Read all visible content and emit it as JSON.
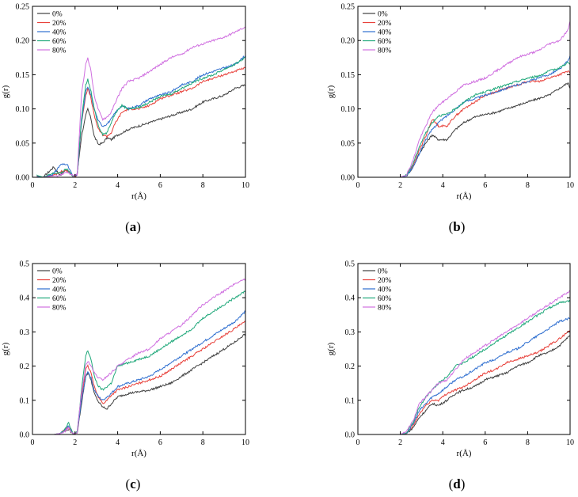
{
  "colors": {
    "0%": "#404040",
    "20%": "#e8403a",
    "40%": "#2f6fd0",
    "60%": "#1fa87a",
    "80%": "#d070e0"
  },
  "chart_data": [
    {
      "type": "line",
      "panel": "(a)",
      "label_letter": "a",
      "xlabel": "r(Å)",
      "ylabel": "g(r)",
      "xlim": [
        0,
        10
      ],
      "ylim": [
        0,
        0.25
      ],
      "xticks": [
        "0",
        "2",
        "4",
        "6",
        "8",
        "10"
      ],
      "yticks": [
        "0.00",
        "0.05",
        "0.10",
        "0.15",
        "0.20",
        "0.25"
      ],
      "legend": [
        "0%",
        "20%",
        "40%",
        "60%",
        "80%"
      ],
      "x": [
        0.2,
        0.5,
        1.0,
        1.3,
        1.6,
        1.9,
        2.1,
        2.3,
        2.5,
        2.6,
        2.75,
        2.9,
        3.1,
        3.3,
        3.5,
        3.7,
        3.9,
        4.2,
        4.5,
        5,
        5.5,
        6,
        6.5,
        7,
        7.5,
        8,
        8.5,
        9,
        9.5,
        10
      ],
      "series": [
        {
          "name": "0%",
          "values": [
            0,
            0,
            0.015,
            0.003,
            0.012,
            0.001,
            0.005,
            0.06,
            0.09,
            0.1,
            0.085,
            0.06,
            0.048,
            0.05,
            0.058,
            0.055,
            0.06,
            0.065,
            0.07,
            0.075,
            0.08,
            0.085,
            0.09,
            0.095,
            0.1,
            0.11,
            0.115,
            0.12,
            0.13,
            0.135
          ]
        },
        {
          "name": "20%",
          "values": [
            0.002,
            0,
            0.003,
            0.008,
            0.01,
            0.002,
            0.003,
            0.08,
            0.12,
            0.13,
            0.115,
            0.09,
            0.07,
            0.062,
            0.06,
            0.065,
            0.08,
            0.095,
            0.1,
            0.1,
            0.105,
            0.115,
            0.12,
            0.125,
            0.13,
            0.14,
            0.145,
            0.15,
            0.155,
            0.16
          ]
        },
        {
          "name": "40%",
          "values": [
            0.001,
            0,
            0.005,
            0.018,
            0.02,
            0.002,
            0.003,
            0.08,
            0.125,
            0.132,
            0.12,
            0.1,
            0.082,
            0.075,
            0.078,
            0.085,
            0.095,
            0.105,
            0.1,
            0.105,
            0.115,
            0.12,
            0.125,
            0.135,
            0.14,
            0.15,
            0.155,
            0.16,
            0.165,
            0.178
          ]
        },
        {
          "name": "60%",
          "values": [
            0.003,
            0,
            0.006,
            0.006,
            0.012,
            0.002,
            0.004,
            0.085,
            0.135,
            0.143,
            0.125,
            0.1,
            0.075,
            0.063,
            0.065,
            0.08,
            0.095,
            0.105,
            0.1,
            0.102,
            0.11,
            0.118,
            0.122,
            0.13,
            0.138,
            0.145,
            0.15,
            0.158,
            0.165,
            0.175
          ]
        },
        {
          "name": "80%",
          "values": [
            0,
            0,
            0.002,
            0.003,
            0.008,
            0.002,
            0.004,
            0.12,
            0.165,
            0.175,
            0.155,
            0.12,
            0.098,
            0.085,
            0.088,
            0.095,
            0.11,
            0.13,
            0.14,
            0.145,
            0.155,
            0.165,
            0.175,
            0.18,
            0.19,
            0.195,
            0.2,
            0.205,
            0.212,
            0.22
          ]
        }
      ]
    },
    {
      "type": "line",
      "panel": "(b)",
      "label_letter": "b",
      "xlabel": "r(Å)",
      "ylabel": "g(r)",
      "xlim": [
        0,
        10
      ],
      "ylim": [
        0,
        0.25
      ],
      "xticks": [
        "0",
        "2",
        "4",
        "6",
        "8",
        "10"
      ],
      "yticks": [
        "0.00",
        "0.05",
        "0.10",
        "0.15",
        "0.20",
        "0.25"
      ],
      "legend": [
        "0%",
        "20%",
        "40%",
        "60%",
        "80%"
      ],
      "x": [
        0,
        1,
        2,
        2.3,
        2.6,
        2.9,
        3.2,
        3.5,
        3.8,
        4.2,
        4.6,
        5,
        5.5,
        6,
        6.5,
        7,
        7.5,
        8,
        8.5,
        9,
        9.5,
        9.9,
        10
      ],
      "series": [
        {
          "name": "0%",
          "values": [
            0,
            0,
            0,
            0.002,
            0.015,
            0.035,
            0.05,
            0.062,
            0.055,
            0.055,
            0.07,
            0.08,
            0.088,
            0.092,
            0.095,
            0.1,
            0.105,
            0.11,
            0.115,
            0.12,
            0.13,
            0.138,
            0.13
          ]
        },
        {
          "name": "20%",
          "values": [
            0,
            0,
            0,
            0.003,
            0.018,
            0.04,
            0.06,
            0.085,
            0.075,
            0.075,
            0.09,
            0.1,
            0.11,
            0.12,
            0.125,
            0.13,
            0.135,
            0.14,
            0.14,
            0.145,
            0.15,
            0.155,
            0.152
          ]
        },
        {
          "name": "40%",
          "values": [
            0,
            0,
            0,
            0.002,
            0.015,
            0.035,
            0.055,
            0.07,
            0.08,
            0.09,
            0.1,
            0.11,
            0.115,
            0.12,
            0.125,
            0.13,
            0.135,
            0.14,
            0.145,
            0.15,
            0.158,
            0.17,
            0.178
          ]
        },
        {
          "name": "60%",
          "values": [
            0,
            0,
            0,
            0.003,
            0.02,
            0.045,
            0.065,
            0.08,
            0.09,
            0.092,
            0.1,
            0.11,
            0.12,
            0.125,
            0.13,
            0.135,
            0.14,
            0.145,
            0.148,
            0.155,
            0.16,
            0.168,
            0.165
          ]
        },
        {
          "name": "80%",
          "values": [
            0,
            0,
            0,
            0.004,
            0.025,
            0.055,
            0.075,
            0.095,
            0.105,
            0.115,
            0.125,
            0.135,
            0.14,
            0.145,
            0.155,
            0.165,
            0.175,
            0.18,
            0.185,
            0.195,
            0.2,
            0.215,
            0.228
          ]
        }
      ]
    },
    {
      "type": "line",
      "panel": "(c)",
      "label_letter": "c",
      "xlabel": "r(Å)",
      "ylabel": "g(r)",
      "xlim": [
        0,
        10
      ],
      "ylim": [
        0,
        0.5
      ],
      "xticks": [
        "0",
        "2",
        "4",
        "6",
        "8",
        "10"
      ],
      "yticks": [
        "0.0",
        "0.1",
        "0.2",
        "0.3",
        "0.4",
        "0.5"
      ],
      "legend": [
        "0%",
        "20%",
        "40%",
        "60%",
        "80%"
      ],
      "x": [
        1.0,
        1.3,
        1.5,
        1.7,
        1.9,
        2.1,
        2.3,
        2.5,
        2.6,
        2.75,
        2.9,
        3.1,
        3.3,
        3.5,
        3.7,
        4,
        4.5,
        5,
        5.5,
        6,
        6.5,
        7,
        7.5,
        8,
        8.5,
        9,
        9.5,
        10
      ],
      "series": [
        {
          "name": "0%",
          "values": [
            0,
            0.003,
            0.01,
            0.015,
            0.002,
            0.004,
            0.09,
            0.17,
            0.18,
            0.16,
            0.12,
            0.095,
            0.08,
            0.075,
            0.09,
            0.11,
            0.12,
            0.125,
            0.13,
            0.14,
            0.15,
            0.17,
            0.19,
            0.21,
            0.23,
            0.25,
            0.27,
            0.295
          ]
        },
        {
          "name": "20%",
          "values": [
            0,
            0.003,
            0.012,
            0.02,
            0.003,
            0.005,
            0.11,
            0.19,
            0.2,
            0.18,
            0.14,
            0.11,
            0.09,
            0.1,
            0.115,
            0.13,
            0.14,
            0.15,
            0.16,
            0.17,
            0.19,
            0.21,
            0.23,
            0.25,
            0.27,
            0.29,
            0.31,
            0.33
          ]
        },
        {
          "name": "40%",
          "values": [
            0,
            0.003,
            0.01,
            0.025,
            0.003,
            0.005,
            0.1,
            0.17,
            0.185,
            0.165,
            0.13,
            0.11,
            0.1,
            0.11,
            0.12,
            0.14,
            0.15,
            0.16,
            0.17,
            0.19,
            0.21,
            0.23,
            0.25,
            0.27,
            0.29,
            0.31,
            0.33,
            0.36
          ]
        },
        {
          "name": "60%",
          "values": [
            0,
            0.003,
            0.015,
            0.035,
            0.003,
            0.006,
            0.13,
            0.23,
            0.245,
            0.22,
            0.17,
            0.14,
            0.13,
            0.14,
            0.15,
            0.2,
            0.21,
            0.22,
            0.23,
            0.25,
            0.27,
            0.29,
            0.31,
            0.34,
            0.36,
            0.38,
            0.4,
            0.42
          ]
        },
        {
          "name": "80%",
          "values": [
            0,
            0.003,
            0.008,
            0.02,
            0.003,
            0.005,
            0.12,
            0.2,
            0.215,
            0.2,
            0.18,
            0.165,
            0.16,
            0.17,
            0.18,
            0.2,
            0.22,
            0.24,
            0.25,
            0.28,
            0.3,
            0.32,
            0.35,
            0.38,
            0.4,
            0.42,
            0.44,
            0.455
          ]
        }
      ]
    },
    {
      "type": "line",
      "panel": "(d)",
      "label_letter": "d",
      "xlabel": "r(Å)",
      "ylabel": "g(r)",
      "xlim": [
        0,
        10
      ],
      "ylim": [
        0,
        0.5
      ],
      "xticks": [
        "0",
        "2",
        "4",
        "6",
        "8",
        "10"
      ],
      "yticks": [
        "0.0",
        "0.1",
        "0.2",
        "0.3",
        "0.4",
        "0.5"
      ],
      "legend": [
        "0%",
        "20%",
        "40%",
        "60%",
        "80%"
      ],
      "x": [
        0,
        1,
        2,
        2.3,
        2.6,
        2.9,
        3.2,
        3.5,
        3.8,
        4.2,
        4.6,
        5,
        5.5,
        6,
        6.5,
        7,
        7.5,
        8,
        8.5,
        9,
        9.5,
        10
      ],
      "series": [
        {
          "name": "0%",
          "values": [
            0,
            0,
            0,
            0.003,
            0.02,
            0.05,
            0.07,
            0.09,
            0.085,
            0.1,
            0.12,
            0.13,
            0.14,
            0.16,
            0.17,
            0.18,
            0.2,
            0.21,
            0.23,
            0.24,
            0.26,
            0.29
          ]
        },
        {
          "name": "20%",
          "values": [
            0,
            0,
            0,
            0.003,
            0.025,
            0.06,
            0.085,
            0.1,
            0.1,
            0.12,
            0.13,
            0.14,
            0.16,
            0.18,
            0.19,
            0.21,
            0.22,
            0.23,
            0.24,
            0.26,
            0.28,
            0.305
          ]
        },
        {
          "name": "40%",
          "values": [
            0,
            0,
            0,
            0.004,
            0.03,
            0.07,
            0.09,
            0.11,
            0.12,
            0.14,
            0.16,
            0.17,
            0.19,
            0.21,
            0.22,
            0.24,
            0.25,
            0.27,
            0.29,
            0.31,
            0.33,
            0.34
          ]
        },
        {
          "name": "60%",
          "values": [
            0,
            0,
            0,
            0.005,
            0.035,
            0.08,
            0.11,
            0.13,
            0.15,
            0.17,
            0.2,
            0.21,
            0.23,
            0.25,
            0.27,
            0.29,
            0.31,
            0.33,
            0.35,
            0.37,
            0.385,
            0.39
          ]
        },
        {
          "name": "80%",
          "values": [
            0,
            0,
            0,
            0.01,
            0.04,
            0.09,
            0.11,
            0.13,
            0.15,
            0.16,
            0.19,
            0.22,
            0.24,
            0.26,
            0.28,
            0.3,
            0.32,
            0.34,
            0.36,
            0.38,
            0.4,
            0.42
          ]
        }
      ]
    }
  ]
}
